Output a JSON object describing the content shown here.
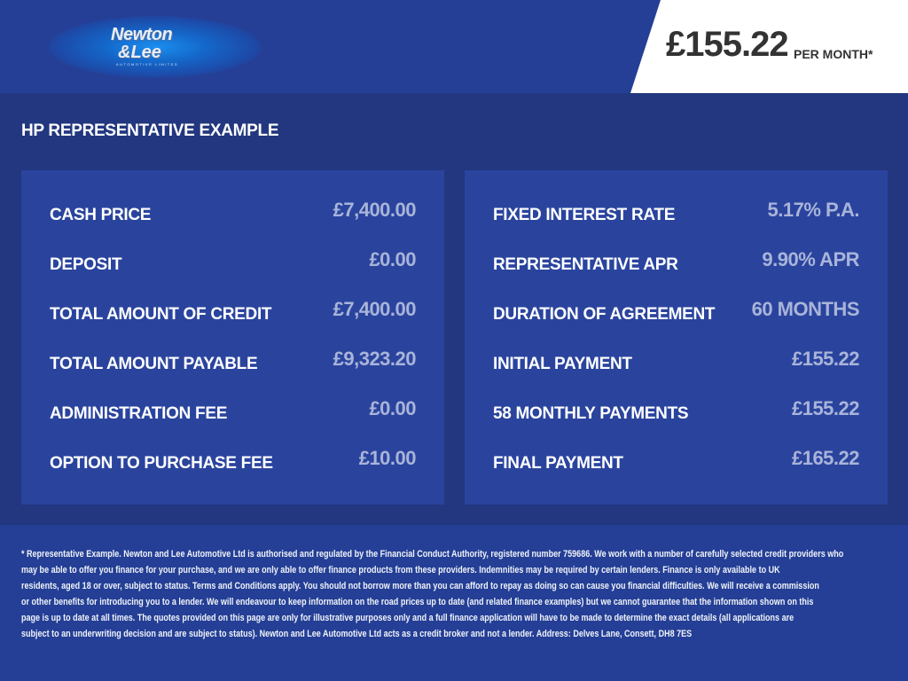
{
  "brand": {
    "logo_line1": "Newton",
    "logo_line2": "&Lee",
    "logo_line3": "AUTOMOTIVE LIMITED"
  },
  "header": {
    "monthly_price": "£155.22",
    "per_month": "PER MONTH*"
  },
  "title": "HP REPRESENTATIVE EXAMPLE",
  "left_panel": [
    {
      "label": "CASH PRICE",
      "value": "£7,400.00"
    },
    {
      "label": "DEPOSIT",
      "value": "£0.00"
    },
    {
      "label": "TOTAL AMOUNT OF CREDIT",
      "value": "£7,400.00"
    },
    {
      "label": "TOTAL AMOUNT PAYABLE",
      "value": "£9,323.20"
    },
    {
      "label": "ADMINISTRATION FEE",
      "value": "£0.00"
    },
    {
      "label": "OPTION TO PURCHASE FEE",
      "value": "£10.00"
    }
  ],
  "right_panel": [
    {
      "label": "FIXED INTEREST RATE",
      "value": "5.17% P.A."
    },
    {
      "label": "REPRESENTATIVE APR",
      "value": "9.90% APR"
    },
    {
      "label": "DURATION OF AGREEMENT",
      "value": "60 MONTHS"
    },
    {
      "label": "INITIAL PAYMENT",
      "value": "£155.22"
    },
    {
      "label": "58 MONTHLY PAYMENTS",
      "value": "£155.22"
    },
    {
      "label": "FINAL PAYMENT",
      "value": "£165.22"
    }
  ],
  "disclaimer": [
    "* Representative Example. Newton and Lee Automotive Ltd is authorised and regulated by the Financial Conduct Authority, registered number 759686. We work with a number of carefully selected credit providers who",
    "may be able to offer you finance for your purchase, and we are only able to offer finance products from these providers. Indemnities may be required by certain lenders. Finance is only available to UK",
    "residents, aged 18 or over, subject to status. Terms and Conditions apply. You should not borrow more than you can afford to repay as doing so can cause you financial difficulties. We will receive a commission",
    "or other benefits for introducing you to a lender. We will endeavour to keep information on the road prices up to date (and related finance examples) but we cannot guarantee that the information shown on this",
    "page is up to date at all times. The quotes provided on this page are only for illustrative purposes only and a full finance application will have to be made to determine the exact details (all applications are",
    "subject to an underwriting decision and are subject to status). Newton and Lee Automotive Ltd acts as a credit broker and not a lender. Address: Delves Lane, Consett, DH8 7ES"
  ]
}
